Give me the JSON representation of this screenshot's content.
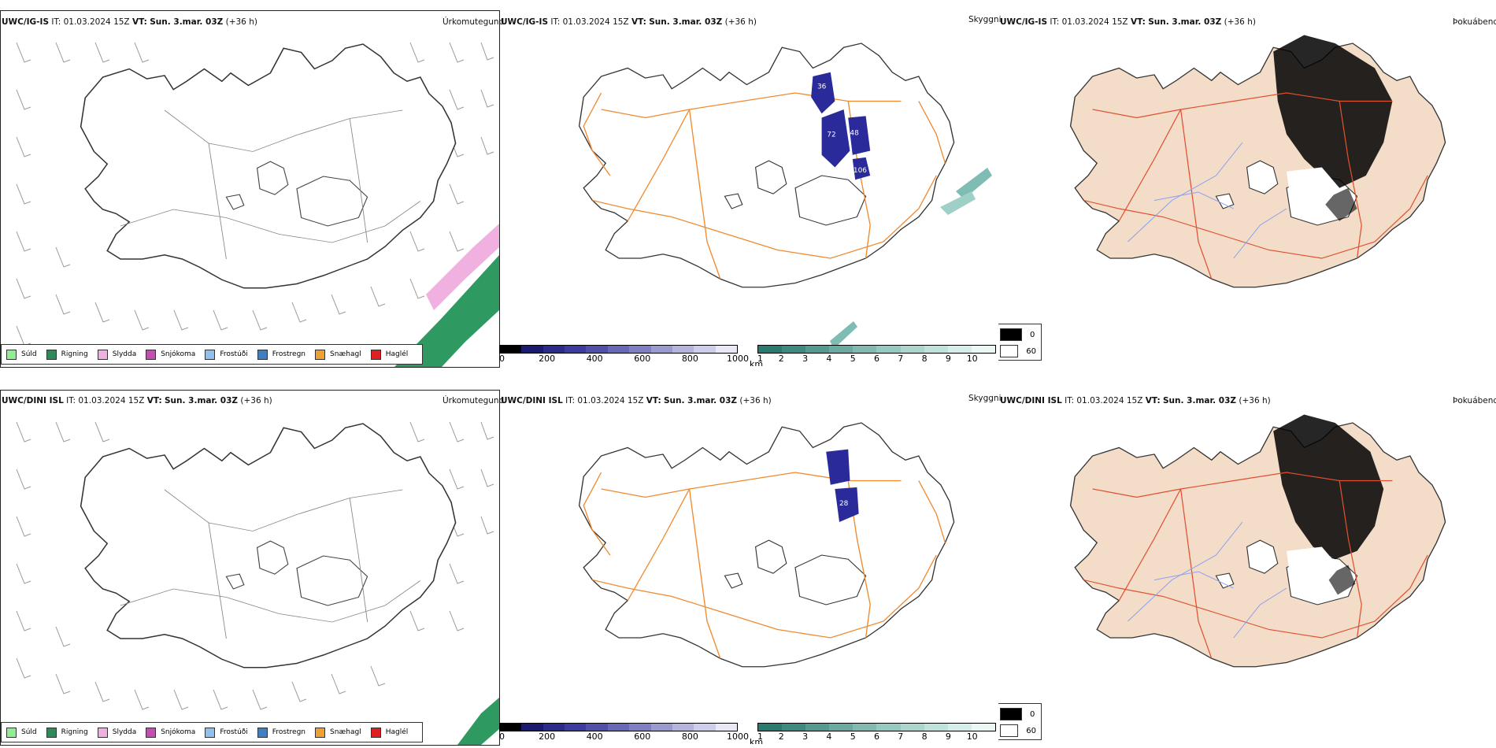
{
  "rows": [
    {
      "model": "UWC/IG-IS",
      "it_label": "IT:",
      "it_value": "01.03.2024 15Z",
      "vt_label": "VT:",
      "vt_value": "Sun. 3.mar. 03Z",
      "lead": "(+36 h)",
      "panels": [
        "Úrkomutegund",
        "Skyggni",
        "Þokuábendi"
      ]
    },
    {
      "model": "UWC/DINI ISL",
      "it_label": "IT:",
      "it_value": "01.03.2024 15Z",
      "vt_label": "VT:",
      "vt_value": "Sun. 3.mar. 03Z",
      "lead": "(+36 h)",
      "panels": [
        "Úrkomutegund",
        "Skyggni",
        "Þokuábendi"
      ]
    }
  ],
  "precip_legend": [
    {
      "label": "Súld",
      "color": "#90ee90"
    },
    {
      "label": "Rigning",
      "color": "#2e8b57"
    },
    {
      "label": "Slydda",
      "color": "#f0b0e0"
    },
    {
      "label": "Snjókoma",
      "color": "#c050b0"
    },
    {
      "label": "Frostúði",
      "color": "#90c0f0"
    },
    {
      "label": "Frostregn",
      "color": "#4080c0"
    },
    {
      "label": "Snæhagl",
      "color": "#f0a030"
    },
    {
      "label": "Haglél",
      "color": "#e02020"
    }
  ],
  "visibility_m": {
    "unit": "m",
    "ticks": [
      "0",
      "200",
      "400",
      "600",
      "800",
      "1000"
    ],
    "colors": [
      "#000000",
      "#1a1a6e",
      "#2b2b8c",
      "#3c3ca0",
      "#5050aa",
      "#6868b8",
      "#7f7fc4",
      "#9a9ad0",
      "#b4b4dc",
      "#ceceea",
      "#e8e8f6"
    ]
  },
  "visibility_km": {
    "unit": "km",
    "ticks": [
      "1",
      "2",
      "3",
      "4",
      "5",
      "6",
      "7",
      "8",
      "9",
      "10"
    ],
    "colors": [
      "#2a7a70",
      "#3f8a80",
      "#559a90",
      "#6aaaa0",
      "#80bab0",
      "#95cac0",
      "#abd6ce",
      "#c0e2dc",
      "#d5eee9",
      "#eaf7f4"
    ]
  },
  "fog_legend": [
    {
      "label": "0",
      "color": "#000000"
    },
    {
      "label": "60",
      "color": "#ffffff"
    }
  ],
  "map_labels": {
    "row1": [
      "36",
      "72",
      "48",
      "106"
    ],
    "row2": [
      "28"
    ]
  },
  "colors": {
    "roads_orange": "#f08a30",
    "roads_red": "#e05030",
    "land_tan": "#f3dcc8",
    "rivers": "#8aa0f0",
    "coast": "#222222",
    "vis_blue": "#2a2a9a",
    "vis_teal": "#7fbcb4",
    "rain_green": "#2e9a62",
    "sleet_pink": "#f0b0e0"
  }
}
